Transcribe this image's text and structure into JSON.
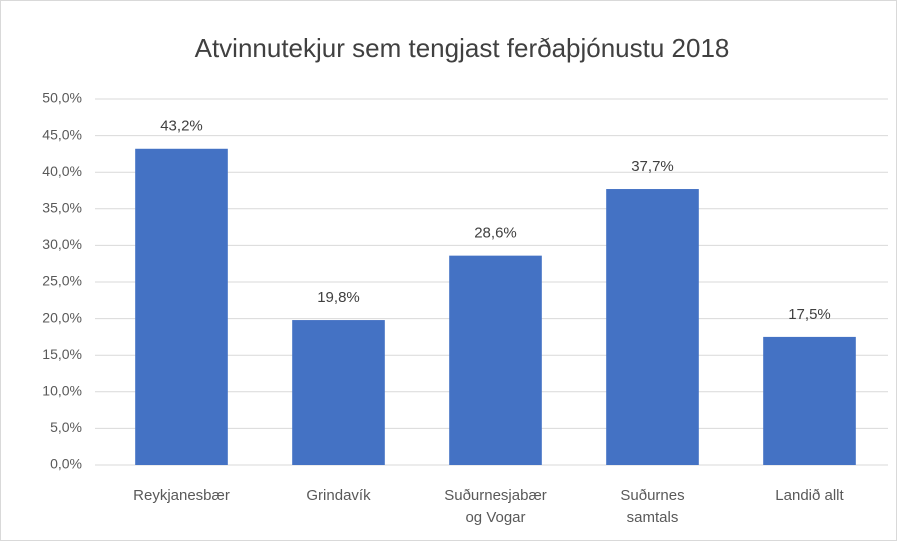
{
  "chart_data": {
    "type": "bar",
    "title": "Atvinnutekjur sem tengjast ferðaþjónustu 2018",
    "categories": [
      "Reykjanesbær",
      "Grindavík",
      "Suðurnesjabær og Vogar",
      "Suðurnes samtals",
      "Landið allt"
    ],
    "values": [
      43.2,
      19.8,
      28.6,
      37.7,
      17.5
    ],
    "value_labels": [
      "43,2%",
      "19,8%",
      "28,6%",
      "37,7%",
      "17,5%"
    ],
    "color": "#4472c4",
    "ylim": [
      0,
      50
    ],
    "yticks": [
      {
        "value": 0,
        "label": "0,0%"
      },
      {
        "value": 5,
        "label": "5,0%"
      },
      {
        "value": 10,
        "label": "10,0%"
      },
      {
        "value": 15,
        "label": "15,0%"
      },
      {
        "value": 20,
        "label": "20,0%"
      },
      {
        "value": 25,
        "label": "25,0%"
      },
      {
        "value": 30,
        "label": "30,0%"
      },
      {
        "value": 35,
        "label": "35,0%"
      },
      {
        "value": 40,
        "label": "40,0%"
      },
      {
        "value": 45,
        "label": "45,0%"
      },
      {
        "value": 50,
        "label": "50,0%"
      }
    ],
    "grid": true
  }
}
